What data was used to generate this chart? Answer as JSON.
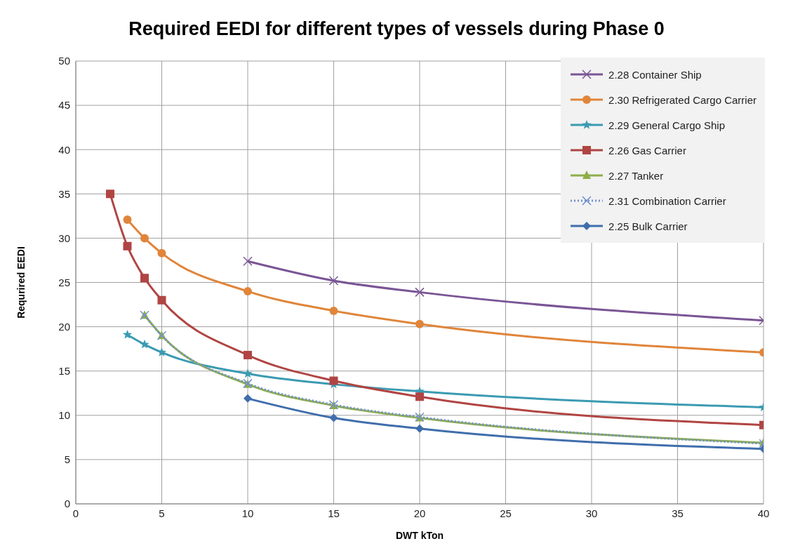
{
  "chart_data": {
    "type": "line",
    "title": "Required EEDI for different types of vessels during Phase 0",
    "xlabel": "DWT kTon",
    "ylabel": "Requrired EEDI",
    "xlim": [
      0,
      40
    ],
    "xticks": [
      0,
      5,
      10,
      15,
      20,
      25,
      30,
      35,
      40
    ],
    "ylim": [
      0,
      50
    ],
    "yticks": [
      0,
      5,
      10,
      15,
      20,
      25,
      30,
      35,
      40,
      45,
      50
    ],
    "grid": true,
    "legend": "top right",
    "series": [
      {
        "name": "2.28 Container Ship",
        "color": "#7a5595",
        "marker": "cross",
        "x": [
          10,
          15,
          20,
          40
        ],
        "values": [
          27.4,
          25.2,
          23.9,
          20.7
        ]
      },
      {
        "name": "2.30 Refrigerated Cargo Carrier",
        "color": "#e0853a",
        "marker": "circle",
        "x": [
          3,
          4,
          5,
          10,
          15,
          20,
          40
        ],
        "values": [
          32.1,
          30.0,
          28.3,
          24.0,
          21.8,
          20.3,
          17.1
        ]
      },
      {
        "name": "2.29 General Cargo Ship",
        "color": "#3b9bb2",
        "marker": "star",
        "x": [
          3,
          4,
          5,
          10,
          15,
          20,
          40
        ],
        "values": [
          19.1,
          18.0,
          17.1,
          14.7,
          13.5,
          12.7,
          10.9
        ]
      },
      {
        "name": "2.26 Gas Carrier",
        "color": "#b04543",
        "marker": "square",
        "x": [
          2,
          3,
          4,
          5,
          10,
          15,
          20,
          40
        ],
        "values": [
          35.0,
          29.1,
          25.5,
          23.0,
          16.8,
          13.9,
          12.1,
          8.9
        ]
      },
      {
        "name": "2.27 Tanker",
        "color": "#8fae4a",
        "marker": "triangle",
        "x": [
          4,
          5,
          10,
          15,
          20,
          40
        ],
        "values": [
          21.3,
          19.0,
          13.5,
          11.1,
          9.7,
          6.9
        ]
      },
      {
        "name": "2.31 Combination Carrier",
        "color": "#6f8fd4",
        "marker": "cross",
        "line_style": "dotted",
        "x": [
          4,
          5,
          10,
          15,
          20,
          40
        ],
        "values": [
          21.3,
          19.0,
          13.6,
          11.2,
          9.8,
          6.8
        ]
      },
      {
        "name": "2.25 Bulk Carrier",
        "color": "#3f6eac",
        "marker": "diamond",
        "x": [
          10,
          15,
          20,
          40
        ],
        "values": [
          11.9,
          9.7,
          8.5,
          6.2
        ]
      }
    ]
  }
}
